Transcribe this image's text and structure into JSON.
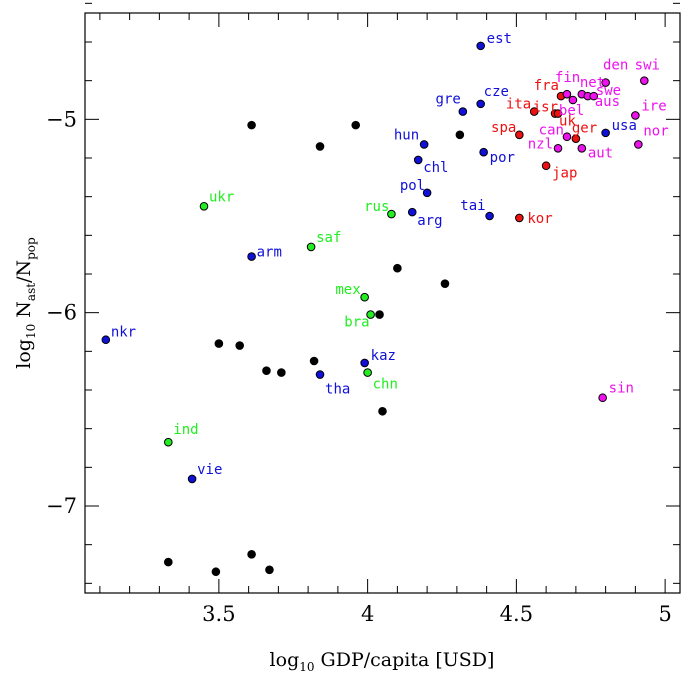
{
  "chart_data": {
    "type": "scatter",
    "title": "",
    "xlabel": {
      "main": "log",
      "sub": "10",
      "rest": " GDP/capita [USD]"
    },
    "ylabel": {
      "main": "log",
      "sub": "10",
      "mid": " N",
      "sub1": "ast",
      "slash": "/N",
      "sub2": "pop"
    },
    "xlim": [
      3.05,
      5.05
    ],
    "ylim": [
      -7.45,
      -4.45
    ],
    "xticks": [
      3.5,
      4,
      4.5,
      5
    ],
    "xtick_labels": [
      "3.5",
      "4",
      "4.5",
      "5"
    ],
    "yticks": [
      -7,
      -6,
      -5
    ],
    "ytick_labels": [
      "−7",
      "−6",
      "−5"
    ],
    "grid": false,
    "colors": {
      "black": "#000000",
      "blue": "#1010d8",
      "green": "#22ee22",
      "red": "#ee1111",
      "magenta": "#ee11ee"
    },
    "points": [
      {
        "x": 4.38,
        "y": -4.62,
        "color": "blue",
        "label": "est",
        "anchor": "start",
        "dx": 6,
        "dy": -3
      },
      {
        "x": 4.93,
        "y": -4.8,
        "color": "magenta",
        "label": "swi",
        "anchor": "middle",
        "dx": 3,
        "dy": -11
      },
      {
        "x": 4.8,
        "y": -4.81,
        "color": "magenta",
        "label": "den",
        "anchor": "middle",
        "dx": 10,
        "dy": -13
      },
      {
        "x": 4.72,
        "y": -4.87,
        "color": "magenta",
        "label": "net",
        "anchor": "start",
        "dx": -2,
        "dy": -7
      },
      {
        "x": 4.65,
        "y": -4.88,
        "color": "red",
        "label": "fra",
        "anchor": "end",
        "dx": -2,
        "dy": -6
      },
      {
        "x": 4.67,
        "y": -4.87,
        "color": "magenta",
        "label": "fin",
        "anchor": "start",
        "dx": -12,
        "dy": -12
      },
      {
        "x": 4.74,
        "y": -4.88,
        "color": "magenta",
        "label": "swe",
        "anchor": "start",
        "dx": 8,
        "dy": -1
      },
      {
        "x": 4.76,
        "y": -4.88,
        "color": "magenta",
        "label": "aus",
        "anchor": "start",
        "dx": 1,
        "dy": 10
      },
      {
        "x": 4.69,
        "y": -4.9,
        "color": "magenta",
        "label": "bel",
        "anchor": "start",
        "dx": -14,
        "dy": 15
      },
      {
        "x": 4.38,
        "y": -4.92,
        "color": "blue",
        "label": "cze",
        "anchor": "start",
        "dx": 3,
        "dy": -8
      },
      {
        "x": 4.32,
        "y": -4.96,
        "color": "blue",
        "label": "gre",
        "anchor": "end",
        "dx": -2,
        "dy": -8
      },
      {
        "x": 4.56,
        "y": -4.96,
        "color": "red",
        "label": "ita",
        "anchor": "end",
        "dx": -3,
        "dy": -3
      },
      {
        "x": 4.63,
        "y": -4.97,
        "color": "red",
        "label": "isr",
        "anchor": "end",
        "dx": 3,
        "dy": -2
      },
      {
        "x": 4.64,
        "y": -4.97,
        "color": "red",
        "label": "uk",
        "anchor": "start",
        "dx": 1,
        "dy": 12
      },
      {
        "x": 4.9,
        "y": -4.98,
        "color": "magenta",
        "label": "ire",
        "anchor": "start",
        "dx": 6,
        "dy": -5
      },
      {
        "x": 4.8,
        "y": -5.07,
        "color": "blue",
        "label": "usa",
        "anchor": "start",
        "dx": 6,
        "dy": -3
      },
      {
        "x": 4.51,
        "y": -5.08,
        "color": "red",
        "label": "spa",
        "anchor": "end",
        "dx": -3,
        "dy": -3
      },
      {
        "x": 4.67,
        "y": -5.09,
        "color": "magenta",
        "label": "can",
        "anchor": "end",
        "dx": -3,
        "dy": -2
      },
      {
        "x": 4.7,
        "y": -5.1,
        "color": "red",
        "label": "ger",
        "anchor": "start",
        "dx": -4,
        "dy": -6
      },
      {
        "x": 4.91,
        "y": -5.13,
        "color": "magenta",
        "label": "nor",
        "anchor": "start",
        "dx": 5,
        "dy": -9
      },
      {
        "x": 4.19,
        "y": -5.13,
        "color": "blue",
        "label": "hun",
        "anchor": "end",
        "dx": -5,
        "dy": -5
      },
      {
        "x": 4.64,
        "y": -5.15,
        "color": "magenta",
        "label": "nzl",
        "anchor": "end",
        "dx": -5,
        "dy": 0
      },
      {
        "x": 4.72,
        "y": -5.15,
        "color": "magenta",
        "label": "aut",
        "anchor": "start",
        "dx": 6,
        "dy": 9
      },
      {
        "x": 4.39,
        "y": -5.17,
        "color": "blue",
        "label": "por",
        "anchor": "start",
        "dx": 6,
        "dy": 10
      },
      {
        "x": 4.17,
        "y": -5.21,
        "color": "blue",
        "label": "chl",
        "anchor": "start",
        "dx": 5,
        "dy": 12
      },
      {
        "x": 4.6,
        "y": -5.24,
        "color": "red",
        "label": "jap",
        "anchor": "start",
        "dx": 6,
        "dy": 12
      },
      {
        "x": 4.2,
        "y": -5.38,
        "color": "blue",
        "label": "pol",
        "anchor": "end",
        "dx": -2,
        "dy": -3
      },
      {
        "x": 3.45,
        "y": -5.45,
        "color": "green",
        "label": "ukr",
        "anchor": "start",
        "dx": 5,
        "dy": -5
      },
      {
        "x": 4.08,
        "y": -5.49,
        "color": "green",
        "label": "rus",
        "anchor": "end",
        "dx": -2,
        "dy": -3
      },
      {
        "x": 4.15,
        "y": -5.48,
        "color": "blue",
        "label": "arg",
        "anchor": "start",
        "dx": 5,
        "dy": 13
      },
      {
        "x": 4.41,
        "y": -5.5,
        "color": "blue",
        "label": "tai",
        "anchor": "end",
        "dx": -4,
        "dy": -6
      },
      {
        "x": 4.51,
        "y": -5.51,
        "color": "red",
        "label": "kor",
        "anchor": "start",
        "dx": 8,
        "dy": 5
      },
      {
        "x": 3.81,
        "y": -5.66,
        "color": "green",
        "label": "saf",
        "anchor": "start",
        "dx": 5,
        "dy": -5
      },
      {
        "x": 3.61,
        "y": -5.71,
        "color": "blue",
        "label": "arm",
        "anchor": "start",
        "dx": 5,
        "dy": 0
      },
      {
        "x": 3.99,
        "y": -5.92,
        "color": "green",
        "label": "mex",
        "anchor": "end",
        "dx": -4,
        "dy": -3
      },
      {
        "x": 4.01,
        "y": -6.01,
        "color": "green",
        "label": "bra",
        "anchor": "end",
        "dx": -1,
        "dy": 12
      },
      {
        "x": 3.12,
        "y": -6.14,
        "color": "blue",
        "label": "nkr",
        "anchor": "start",
        "dx": 5,
        "dy": -3
      },
      {
        "x": 3.99,
        "y": -6.26,
        "color": "blue",
        "label": "kaz",
        "anchor": "start",
        "dx": 6,
        "dy": -3
      },
      {
        "x": 3.84,
        "y": -6.32,
        "color": "blue",
        "label": "tha",
        "anchor": "start",
        "dx": 5,
        "dy": 19
      },
      {
        "x": 4.0,
        "y": -6.31,
        "color": "green",
        "label": "chn",
        "anchor": "start",
        "dx": 5,
        "dy": 16
      },
      {
        "x": 4.79,
        "y": -6.44,
        "color": "magenta",
        "label": "sin",
        "anchor": "start",
        "dx": 6,
        "dy": -5
      },
      {
        "x": 3.33,
        "y": -6.67,
        "color": "green",
        "label": "ind",
        "anchor": "start",
        "dx": 5,
        "dy": -8
      },
      {
        "x": 3.41,
        "y": -6.86,
        "color": "blue",
        "label": "vie",
        "anchor": "start",
        "dx": 5,
        "dy": -5
      },
      {
        "x": 3.61,
        "y": -5.03,
        "color": "black",
        "label": ""
      },
      {
        "x": 3.96,
        "y": -5.03,
        "color": "black",
        "label": ""
      },
      {
        "x": 3.84,
        "y": -5.14,
        "color": "black",
        "label": ""
      },
      {
        "x": 4.31,
        "y": -5.08,
        "color": "black",
        "label": ""
      },
      {
        "x": 4.1,
        "y": -5.77,
        "color": "black",
        "label": ""
      },
      {
        "x": 4.26,
        "y": -5.85,
        "color": "black",
        "label": ""
      },
      {
        "x": 4.04,
        "y": -6.01,
        "color": "black",
        "label": ""
      },
      {
        "x": 3.5,
        "y": -6.16,
        "color": "black",
        "label": ""
      },
      {
        "x": 3.57,
        "y": -6.17,
        "color": "black",
        "label": ""
      },
      {
        "x": 3.82,
        "y": -6.25,
        "color": "black",
        "label": ""
      },
      {
        "x": 3.66,
        "y": -6.3,
        "color": "black",
        "label": ""
      },
      {
        "x": 3.71,
        "y": -6.31,
        "color": "black",
        "label": ""
      },
      {
        "x": 4.05,
        "y": -6.51,
        "color": "black",
        "label": ""
      },
      {
        "x": 3.61,
        "y": -7.25,
        "color": "black",
        "label": ""
      },
      {
        "x": 3.33,
        "y": -7.29,
        "color": "black",
        "label": ""
      },
      {
        "x": 3.49,
        "y": -7.34,
        "color": "black",
        "label": ""
      },
      {
        "x": 3.67,
        "y": -7.33,
        "color": "black",
        "label": ""
      }
    ]
  }
}
